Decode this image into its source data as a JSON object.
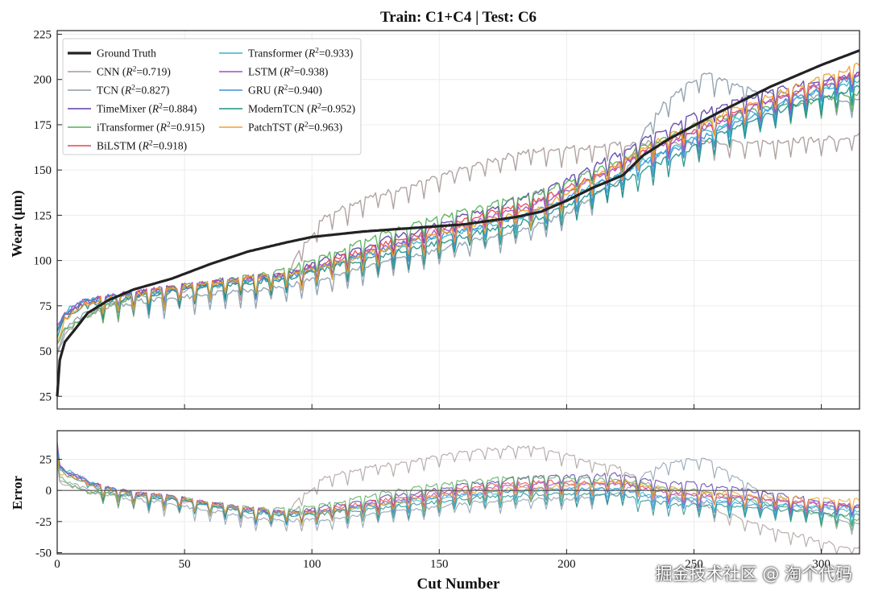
{
  "chart_data": [
    {
      "type": "line",
      "title": "Train: C1+C4  |  Test: C6",
      "xlabel": "",
      "ylabel": "Wear (μm)",
      "xlim": [
        0,
        315
      ],
      "ylim": [
        18,
        227
      ],
      "yticks": [
        25,
        50,
        75,
        100,
        125,
        150,
        175,
        200,
        225
      ],
      "grid": true,
      "legend_position": "top-left",
      "series": [
        {
          "name": "Ground Truth",
          "r2": "",
          "color": "#222222",
          "width": 3.2,
          "x": [
            0,
            1,
            3,
            7,
            12,
            20,
            30,
            45,
            60,
            75,
            90,
            100,
            120,
            140,
            160,
            180,
            190,
            200,
            210,
            222,
            230,
            240,
            260,
            280,
            300,
            315
          ],
          "y": [
            25,
            45,
            55,
            62,
            71,
            78,
            84,
            90,
            98,
            105,
            110,
            113,
            116,
            118,
            120,
            124,
            127,
            133,
            140,
            147,
            158,
            167,
            182,
            196,
            208,
            216
          ]
        },
        {
          "name": "CNN",
          "r2": "0.719",
          "color": "#a89a98",
          "width": 1.4,
          "x": [
            0,
            3,
            10,
            20,
            30,
            50,
            70,
            90,
            95,
            100,
            105,
            110,
            120,
            130,
            140,
            150,
            160,
            170,
            180,
            190,
            200,
            210,
            220,
            230,
            240,
            250,
            260,
            280,
            300,
            315
          ],
          "y": [
            48,
            60,
            68,
            75,
            80,
            84,
            87,
            92,
            105,
            115,
            125,
            128,
            134,
            138,
            142,
            146,
            151,
            155,
            159,
            161,
            162,
            163,
            164,
            165,
            165,
            165,
            165,
            166,
            167,
            169
          ]
        },
        {
          "name": "TCN",
          "r2": "0.827",
          "color": "#8a9bab",
          "width": 1.4,
          "x": [
            0,
            3,
            10,
            20,
            30,
            50,
            70,
            90,
            110,
            130,
            150,
            170,
            190,
            200,
            210,
            222,
            230,
            240,
            245,
            250,
            255,
            260,
            270,
            280,
            300,
            315
          ],
          "y": [
            50,
            62,
            70,
            75,
            77,
            80,
            83,
            86,
            92,
            100,
            106,
            113,
            120,
            126,
            135,
            145,
            170,
            190,
            195,
            200,
            203,
            200,
            196,
            192,
            190,
            188
          ]
        },
        {
          "name": "TimeMixer",
          "r2": "0.884",
          "color": "#5b3fa8",
          "width": 1.4,
          "x": [
            0,
            3,
            10,
            20,
            30,
            50,
            70,
            90,
            110,
            130,
            150,
            170,
            190,
            200,
            210,
            222,
            230,
            250,
            270,
            290,
            315
          ],
          "y": [
            60,
            70,
            76,
            80,
            82,
            86,
            90,
            93,
            103,
            112,
            120,
            129,
            138,
            145,
            152,
            160,
            167,
            180,
            190,
            197,
            203
          ]
        },
        {
          "name": "iTransformer",
          "r2": "0.915",
          "color": "#56ad5a",
          "width": 1.4,
          "x": [
            0,
            3,
            10,
            20,
            30,
            50,
            70,
            90,
            110,
            130,
            150,
            170,
            190,
            200,
            210,
            222,
            230,
            250,
            270,
            290,
            315
          ],
          "y": [
            55,
            62,
            68,
            75,
            80,
            86,
            90,
            95,
            105,
            116,
            124,
            131,
            138,
            143,
            149,
            156,
            163,
            175,
            182,
            186,
            193
          ]
        },
        {
          "name": "BiLSTM",
          "r2": "0.918",
          "color": "#e2474d",
          "width": 1.4,
          "x": [
            0,
            3,
            10,
            20,
            30,
            50,
            70,
            90,
            110,
            130,
            150,
            170,
            190,
            200,
            210,
            222,
            230,
            250,
            270,
            290,
            315
          ],
          "y": [
            62,
            70,
            76,
            80,
            82,
            86,
            89,
            92,
            101,
            110,
            118,
            126,
            134,
            140,
            146,
            154,
            160,
            172,
            184,
            193,
            203
          ]
        },
        {
          "name": "Transformer",
          "r2": "0.933",
          "color": "#2cb6c9",
          "width": 1.4,
          "x": [
            0,
            3,
            10,
            20,
            30,
            50,
            70,
            90,
            110,
            130,
            150,
            170,
            190,
            200,
            210,
            222,
            230,
            250,
            270,
            290,
            315
          ],
          "y": [
            62,
            72,
            77,
            80,
            81,
            85,
            88,
            91,
            98,
            106,
            113,
            120,
            127,
            134,
            141,
            149,
            155,
            168,
            180,
            190,
            199
          ]
        },
        {
          "name": "LSTM",
          "r2": "0.938",
          "color": "#a24ec4",
          "width": 1.4,
          "x": [
            0,
            3,
            10,
            20,
            30,
            50,
            70,
            90,
            110,
            130,
            150,
            170,
            190,
            200,
            210,
            222,
            230,
            250,
            270,
            290,
            315
          ],
          "y": [
            63,
            71,
            77,
            80,
            82,
            86,
            89,
            92,
            100,
            108,
            116,
            124,
            132,
            139,
            145,
            153,
            159,
            171,
            183,
            193,
            204
          ]
        },
        {
          "name": "GRU",
          "r2": "0.940",
          "color": "#3f8fd6",
          "width": 1.4,
          "x": [
            0,
            3,
            10,
            20,
            30,
            50,
            70,
            90,
            110,
            130,
            150,
            170,
            190,
            200,
            210,
            222,
            230,
            250,
            270,
            290,
            315
          ],
          "y": [
            62,
            71,
            77,
            80,
            81,
            85,
            88,
            91,
            99,
            107,
            114,
            121,
            128,
            134,
            141,
            148,
            154,
            166,
            178,
            190,
            202
          ]
        },
        {
          "name": "ModernTCN",
          "r2": "0.952",
          "color": "#1f8f8a",
          "width": 1.4,
          "x": [
            0,
            3,
            10,
            20,
            30,
            50,
            70,
            90,
            110,
            130,
            150,
            170,
            190,
            200,
            210,
            222,
            230,
            250,
            270,
            290,
            315
          ],
          "y": [
            58,
            68,
            74,
            78,
            80,
            84,
            87,
            90,
            97,
            104,
            110,
            117,
            124,
            130,
            137,
            144,
            150,
            163,
            176,
            186,
            196
          ]
        },
        {
          "name": "PatchTST",
          "r2": "0.963",
          "color": "#f0a02b",
          "width": 1.4,
          "x": [
            0,
            3,
            10,
            20,
            30,
            50,
            70,
            90,
            110,
            130,
            150,
            170,
            190,
            200,
            210,
            222,
            230,
            250,
            270,
            290,
            315
          ],
          "y": [
            55,
            68,
            75,
            79,
            81,
            86,
            89,
            92,
            99,
            107,
            115,
            122,
            129,
            137,
            145,
            154,
            162,
            175,
            186,
            196,
            208
          ]
        }
      ]
    },
    {
      "type": "line",
      "title": "",
      "xlabel": "Cut Number",
      "ylabel": "Error",
      "xlim": [
        0,
        315
      ],
      "ylim": [
        -51,
        48
      ],
      "xticks": [
        0,
        50,
        100,
        150,
        200,
        250,
        300
      ],
      "yticks": [
        -50,
        -25,
        0,
        25
      ],
      "reference_line": 0,
      "grid": true
    }
  ],
  "watermark": "掘金技术社区 @ 淘个代码"
}
